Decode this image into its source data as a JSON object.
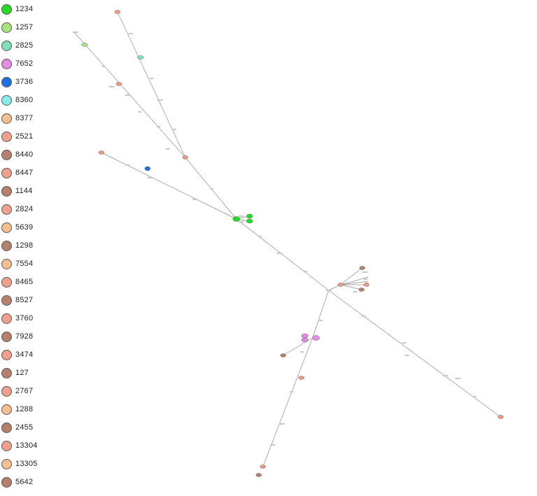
{
  "legend": {
    "items": [
      {
        "label": "1234",
        "color": "#22dd22"
      },
      {
        "label": "1257",
        "color": "#a9e57f"
      },
      {
        "label": "2825",
        "color": "#7fe0b8"
      },
      {
        "label": "7652",
        "color": "#e58ae5"
      },
      {
        "label": "3736",
        "color": "#1f6fe0"
      },
      {
        "label": "8360",
        "color": "#86eeee"
      },
      {
        "label": "8377",
        "color": "#f7bf8f"
      },
      {
        "label": "2521",
        "color": "#f2a08c"
      },
      {
        "label": "8440",
        "color": "#b5806c"
      },
      {
        "label": "8447",
        "color": "#f2a08c"
      },
      {
        "label": "1144",
        "color": "#b5806c"
      },
      {
        "label": "2824",
        "color": "#f2a08c"
      },
      {
        "label": "5639",
        "color": "#f7bf8f"
      },
      {
        "label": "1298",
        "color": "#b5806c"
      },
      {
        "label": "7554",
        "color": "#f7bf8f"
      },
      {
        "label": "8465",
        "color": "#f2a08c"
      },
      {
        "label": "8527",
        "color": "#b5806c"
      },
      {
        "label": "3760",
        "color": "#f2a08c"
      },
      {
        "label": "7928",
        "color": "#b5806c"
      },
      {
        "label": "3474",
        "color": "#f2a08c"
      },
      {
        "label": "127",
        "color": "#b5806c"
      },
      {
        "label": "2767",
        "color": "#f2a08c"
      },
      {
        "label": "1288",
        "color": "#f7bf8f"
      },
      {
        "label": "2455",
        "color": "#b5806c"
      },
      {
        "label": "13304",
        "color": "#f2a08c"
      },
      {
        "label": "13305",
        "color": "#f7bf8f"
      },
      {
        "label": "5642",
        "color": "#b5806c"
      }
    ]
  },
  "colors": {
    "edge": "#8c8c8c",
    "node_outline": "#666666",
    "salmon": "#ec9b80",
    "brown": "#b5806c",
    "green": "#22dd22",
    "light_green": "#a9e57f",
    "teal": "#7fe0b8",
    "magenta": "#e58ae5",
    "blue": "#1f6fe0"
  }
}
